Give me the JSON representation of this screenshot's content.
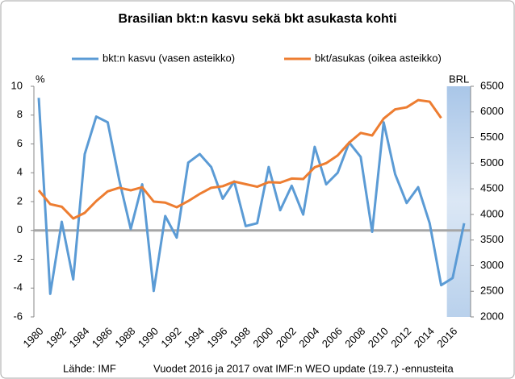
{
  "chart_data": {
    "type": "line",
    "title": "Brasilian bkt:n kasvu sekä bkt asukasta kohti",
    "y_label": "%",
    "y2_label": "BRL",
    "source": "Lähde: IMF",
    "note": "Vuodet 2016 ja 2017 ovat IMF:n WEO update (19.7.) -ennusteita",
    "categories": [
      "1980",
      null,
      "1982",
      null,
      "1984",
      null,
      "1986",
      null,
      "1988",
      null,
      "1990",
      null,
      "1992",
      null,
      "1994",
      null,
      "1996",
      null,
      "1998",
      null,
      "2000",
      null,
      "2002",
      null,
      "2004",
      null,
      "2006",
      null,
      "2008",
      null,
      "2010",
      null,
      "2012",
      null,
      "2014",
      null,
      "2016",
      null
    ],
    "series": [
      {
        "name": "bkt:n kasvu  (vasen asteikko)",
        "color": "#5b9bd5",
        "axis": "y",
        "values": [
          9.2,
          -4.4,
          0.6,
          -3.4,
          5.3,
          7.9,
          7.5,
          3.5,
          0.1,
          3.2,
          -4.2,
          1.0,
          -0.5,
          4.7,
          5.3,
          4.4,
          2.2,
          3.4,
          0.3,
          0.5,
          4.4,
          1.4,
          3.1,
          1.1,
          5.8,
          3.2,
          4.0,
          6.1,
          5.1,
          -0.1,
          7.5,
          3.9,
          1.9,
          3.0,
          0.5,
          -3.8,
          -3.3,
          0.5
        ]
      },
      {
        "name": "bkt/asukas (oikea asteikko)",
        "color": "#ed7d31",
        "axis": "y2",
        "values": [
          4470,
          4200,
          4150,
          3920,
          4030,
          4260,
          4450,
          4520,
          4470,
          4530,
          4250,
          4230,
          4140,
          4260,
          4400,
          4520,
          4550,
          4640,
          4590,
          4540,
          4630,
          4620,
          4700,
          4690,
          4920,
          5000,
          5150,
          5400,
          5590,
          5540,
          5870,
          6050,
          6090,
          6230,
          6200,
          5880,
          null,
          null
        ]
      }
    ],
    "ylim": [
      -6,
      10
    ],
    "yticks": [
      -6,
      -4,
      -2,
      0,
      2,
      4,
      6,
      8,
      10
    ],
    "y2lim": [
      2000,
      6500
    ],
    "y2ticks": [
      2000,
      2500,
      3000,
      3500,
      4000,
      4500,
      5000,
      5500,
      6000,
      6500
    ]
  }
}
